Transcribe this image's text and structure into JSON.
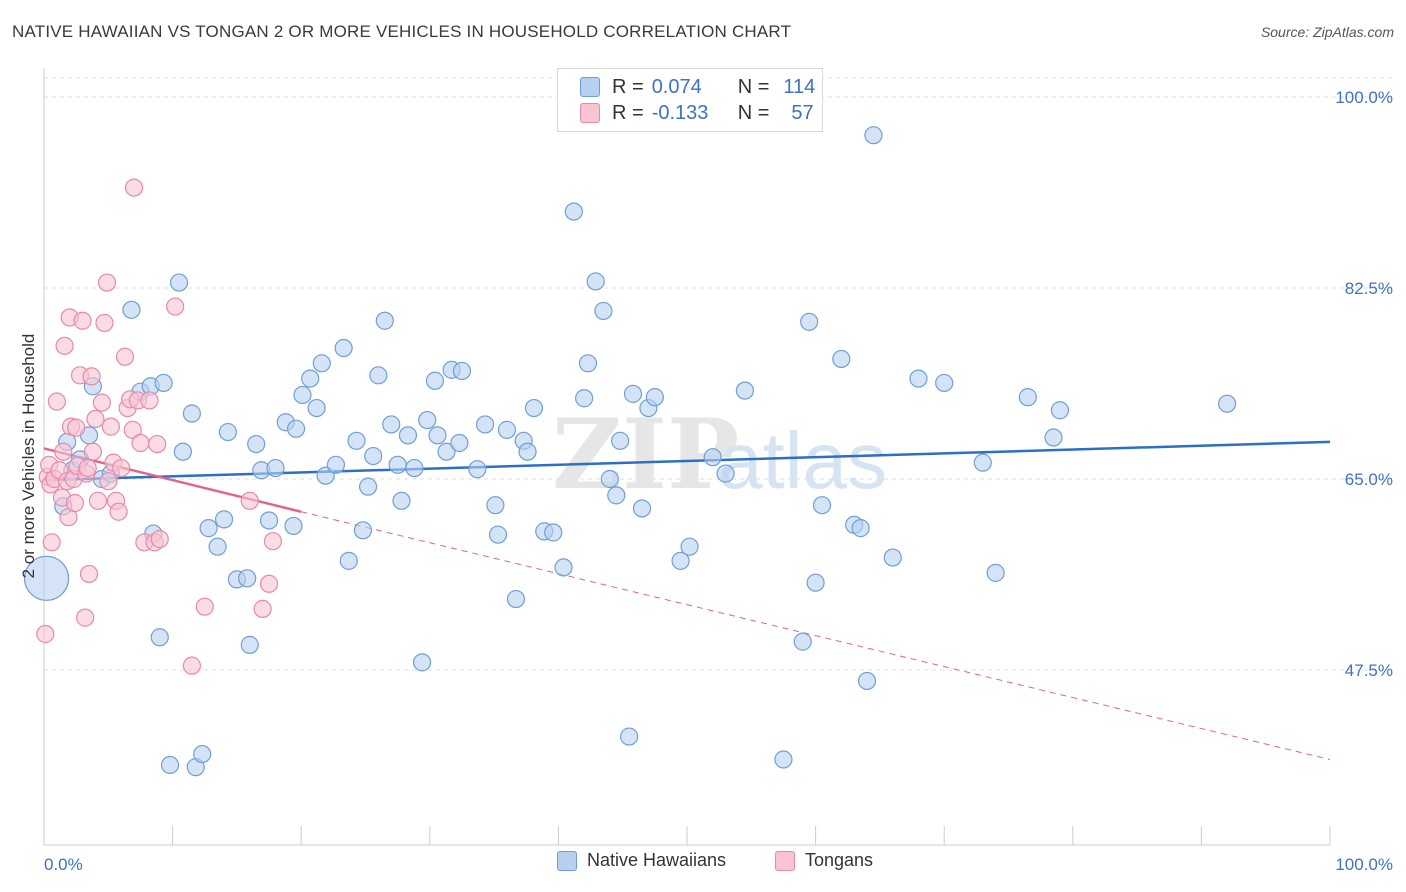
{
  "title": "NATIVE HAWAIIAN VS TONGAN 2 OR MORE VEHICLES IN HOUSEHOLD CORRELATION CHART",
  "source": "Source: ZipAtlas.com",
  "legend": {
    "series1": {
      "r_label": "R =",
      "r_value": "0.074",
      "n_label": "N =",
      "n_value": "114"
    },
    "series2": {
      "r_label": "R =",
      "r_value": "-0.133",
      "n_label": "N =",
      "n_value": "57"
    }
  },
  "bottom_legend": {
    "series1": "Native Hawaiians",
    "series2": "Tongans"
  },
  "colors": {
    "blue_fill": "#b8d0f0",
    "blue_stroke": "#6f9fd8",
    "blue_line": "#2b6fc9",
    "pink_fill": "#f8c4d4",
    "pink_stroke": "#e889a8",
    "pink_line": "#e0648e",
    "tick_label": "#3d72c4",
    "grid": "#dddddd"
  },
  "chart_data": {
    "type": "scatter",
    "title": "NATIVE HAWAIIAN VS TONGAN 2 OR MORE VEHICLES IN HOUSEHOLD CORRELATION CHART",
    "xlabel": "",
    "ylabel": "2 or more Vehicles in Household",
    "xlim": [
      0,
      100
    ],
    "ylim": [
      32,
      104
    ],
    "x_tick_labels": [
      "0.0%",
      "100.0%"
    ],
    "y_ticks": [
      47.5,
      65.0,
      82.5,
      100.0
    ],
    "y_tick_labels": [
      "47.5%",
      "65.0%",
      "82.5%",
      "100.0%"
    ],
    "grid": true,
    "watermark": "ZIPatlas",
    "series": [
      {
        "name": "Native Hawaiians",
        "trend": {
          "x": [
            0,
            100
          ],
          "y": [
            64.9,
            68.4
          ],
          "style": "solid"
        },
        "points": [
          [
            0.2,
            55.9
          ],
          [
            1.5,
            62.5
          ],
          [
            1.8,
            68.4
          ],
          [
            2.2,
            65.8
          ],
          [
            2.8,
            66.8
          ],
          [
            3.5,
            69.0
          ],
          [
            3.8,
            73.5
          ],
          [
            4.5,
            65.0
          ],
          [
            5.2,
            65.5
          ],
          [
            6.8,
            80.5
          ],
          [
            7.5,
            73.0
          ],
          [
            8.3,
            73.5
          ],
          [
            8.5,
            60.0
          ],
          [
            9.0,
            50.5
          ],
          [
            9.3,
            73.8
          ],
          [
            9.8,
            38.8
          ],
          [
            10.5,
            83.0
          ],
          [
            10.8,
            67.5
          ],
          [
            11.5,
            71.0
          ],
          [
            11.8,
            38.6
          ],
          [
            12.3,
            39.8
          ],
          [
            12.8,
            60.5
          ],
          [
            13.5,
            58.8
          ],
          [
            14.0,
            61.3
          ],
          [
            14.3,
            69.3
          ],
          [
            15.0,
            55.8
          ],
          [
            15.8,
            55.9
          ],
          [
            16.0,
            49.8
          ],
          [
            16.5,
            68.2
          ],
          [
            16.9,
            65.8
          ],
          [
            17.5,
            61.2
          ],
          [
            18.0,
            66.0
          ],
          [
            18.8,
            70.2
          ],
          [
            19.4,
            60.7
          ],
          [
            19.6,
            69.6
          ],
          [
            20.1,
            72.7
          ],
          [
            20.7,
            74.2
          ],
          [
            21.2,
            71.5
          ],
          [
            21.6,
            75.6
          ],
          [
            21.9,
            65.3
          ],
          [
            22.7,
            66.3
          ],
          [
            23.3,
            77.0
          ],
          [
            23.7,
            57.5
          ],
          [
            24.3,
            68.5
          ],
          [
            24.8,
            60.3
          ],
          [
            25.2,
            64.3
          ],
          [
            25.6,
            67.1
          ],
          [
            26.0,
            74.5
          ],
          [
            26.5,
            79.5
          ],
          [
            27.0,
            70.0
          ],
          [
            27.5,
            66.3
          ],
          [
            27.8,
            63.0
          ],
          [
            28.3,
            69.0
          ],
          [
            28.8,
            66.0
          ],
          [
            29.4,
            48.2
          ],
          [
            29.8,
            70.4
          ],
          [
            30.4,
            74.0
          ],
          [
            30.6,
            69.0
          ],
          [
            31.3,
            67.5
          ],
          [
            31.7,
            75.0
          ],
          [
            32.3,
            68.3
          ],
          [
            32.5,
            74.9
          ],
          [
            33.7,
            65.9
          ],
          [
            34.3,
            70.0
          ],
          [
            35.1,
            62.6
          ],
          [
            35.3,
            59.9
          ],
          [
            36.0,
            69.5
          ],
          [
            36.7,
            54.0
          ],
          [
            37.3,
            68.5
          ],
          [
            37.6,
            67.5
          ],
          [
            38.1,
            71.5
          ],
          [
            38.9,
            60.2
          ],
          [
            39.6,
            60.1
          ],
          [
            40.4,
            56.9
          ],
          [
            41.2,
            89.5
          ],
          [
            42.0,
            72.4
          ],
          [
            42.3,
            75.6
          ],
          [
            42.9,
            83.1
          ],
          [
            43.5,
            80.4
          ],
          [
            44.0,
            65.0
          ],
          [
            44.5,
            63.5
          ],
          [
            44.8,
            68.5
          ],
          [
            45.5,
            41.4
          ],
          [
            45.8,
            72.8
          ],
          [
            46.5,
            62.3
          ],
          [
            47.0,
            71.5
          ],
          [
            47.5,
            72.5
          ],
          [
            49.5,
            57.5
          ],
          [
            50.2,
            58.8
          ],
          [
            52.0,
            67.0
          ],
          [
            53.0,
            65.5
          ],
          [
            54.5,
            73.1
          ],
          [
            57.5,
            39.3
          ],
          [
            59.0,
            50.1
          ],
          [
            59.5,
            79.4
          ],
          [
            60.0,
            55.5
          ],
          [
            60.5,
            62.6
          ],
          [
            62.0,
            76.0
          ],
          [
            63.0,
            60.8
          ],
          [
            63.5,
            60.5
          ],
          [
            64.0,
            46.5
          ],
          [
            64.5,
            96.5
          ],
          [
            66.0,
            57.8
          ],
          [
            68.0,
            74.2
          ],
          [
            70.0,
            73.8
          ],
          [
            73.0,
            66.5
          ],
          [
            74.0,
            56.4
          ],
          [
            76.5,
            72.5
          ],
          [
            78.5,
            68.8
          ],
          [
            79.0,
            71.3
          ],
          [
            92.0,
            71.9
          ]
        ]
      },
      {
        "name": "Tongans",
        "trend": {
          "x": [
            0,
            20
          ],
          "y": [
            67.8,
            62.0
          ],
          "style": "solid",
          "dashed_extension": {
            "x": [
              20,
              100
            ],
            "y": [
              62.0,
              39.3
            ]
          }
        },
        "points": [
          [
            0.1,
            50.8
          ],
          [
            0.3,
            65.2
          ],
          [
            0.4,
            66.3
          ],
          [
            0.5,
            64.5
          ],
          [
            0.6,
            59.2
          ],
          [
            0.8,
            65.0
          ],
          [
            1.0,
            72.1
          ],
          [
            1.2,
            65.8
          ],
          [
            1.4,
            63.3
          ],
          [
            1.5,
            67.5
          ],
          [
            1.6,
            77.2
          ],
          [
            1.8,
            64.8
          ],
          [
            1.9,
            61.5
          ],
          [
            2.0,
            79.8
          ],
          [
            2.1,
            69.8
          ],
          [
            2.3,
            65.0
          ],
          [
            2.4,
            62.8
          ],
          [
            2.5,
            69.7
          ],
          [
            2.6,
            66.2
          ],
          [
            2.8,
            74.5
          ],
          [
            3.0,
            79.5
          ],
          [
            3.2,
            52.3
          ],
          [
            3.3,
            65.5
          ],
          [
            3.4,
            66.0
          ],
          [
            3.5,
            56.3
          ],
          [
            3.7,
            74.4
          ],
          [
            3.8,
            67.5
          ],
          [
            4.0,
            70.5
          ],
          [
            4.2,
            63.0
          ],
          [
            4.5,
            72.0
          ],
          [
            4.7,
            79.3
          ],
          [
            4.9,
            83.0
          ],
          [
            5.0,
            64.8
          ],
          [
            5.2,
            69.8
          ],
          [
            5.4,
            66.5
          ],
          [
            5.6,
            63.0
          ],
          [
            5.8,
            62.0
          ],
          [
            6.0,
            66.0
          ],
          [
            6.3,
            76.2
          ],
          [
            6.5,
            71.5
          ],
          [
            6.7,
            72.3
          ],
          [
            6.9,
            69.5
          ],
          [
            7.0,
            91.7
          ],
          [
            7.3,
            72.2
          ],
          [
            7.5,
            68.3
          ],
          [
            7.8,
            59.2
          ],
          [
            8.2,
            72.2
          ],
          [
            8.6,
            59.2
          ],
          [
            8.8,
            68.2
          ],
          [
            9.0,
            59.5
          ],
          [
            10.2,
            80.8
          ],
          [
            11.5,
            47.9
          ],
          [
            12.5,
            53.3
          ],
          [
            17.5,
            55.4
          ],
          [
            17.0,
            53.1
          ],
          [
            16.0,
            63.0
          ],
          [
            17.8,
            59.3
          ]
        ]
      }
    ]
  }
}
